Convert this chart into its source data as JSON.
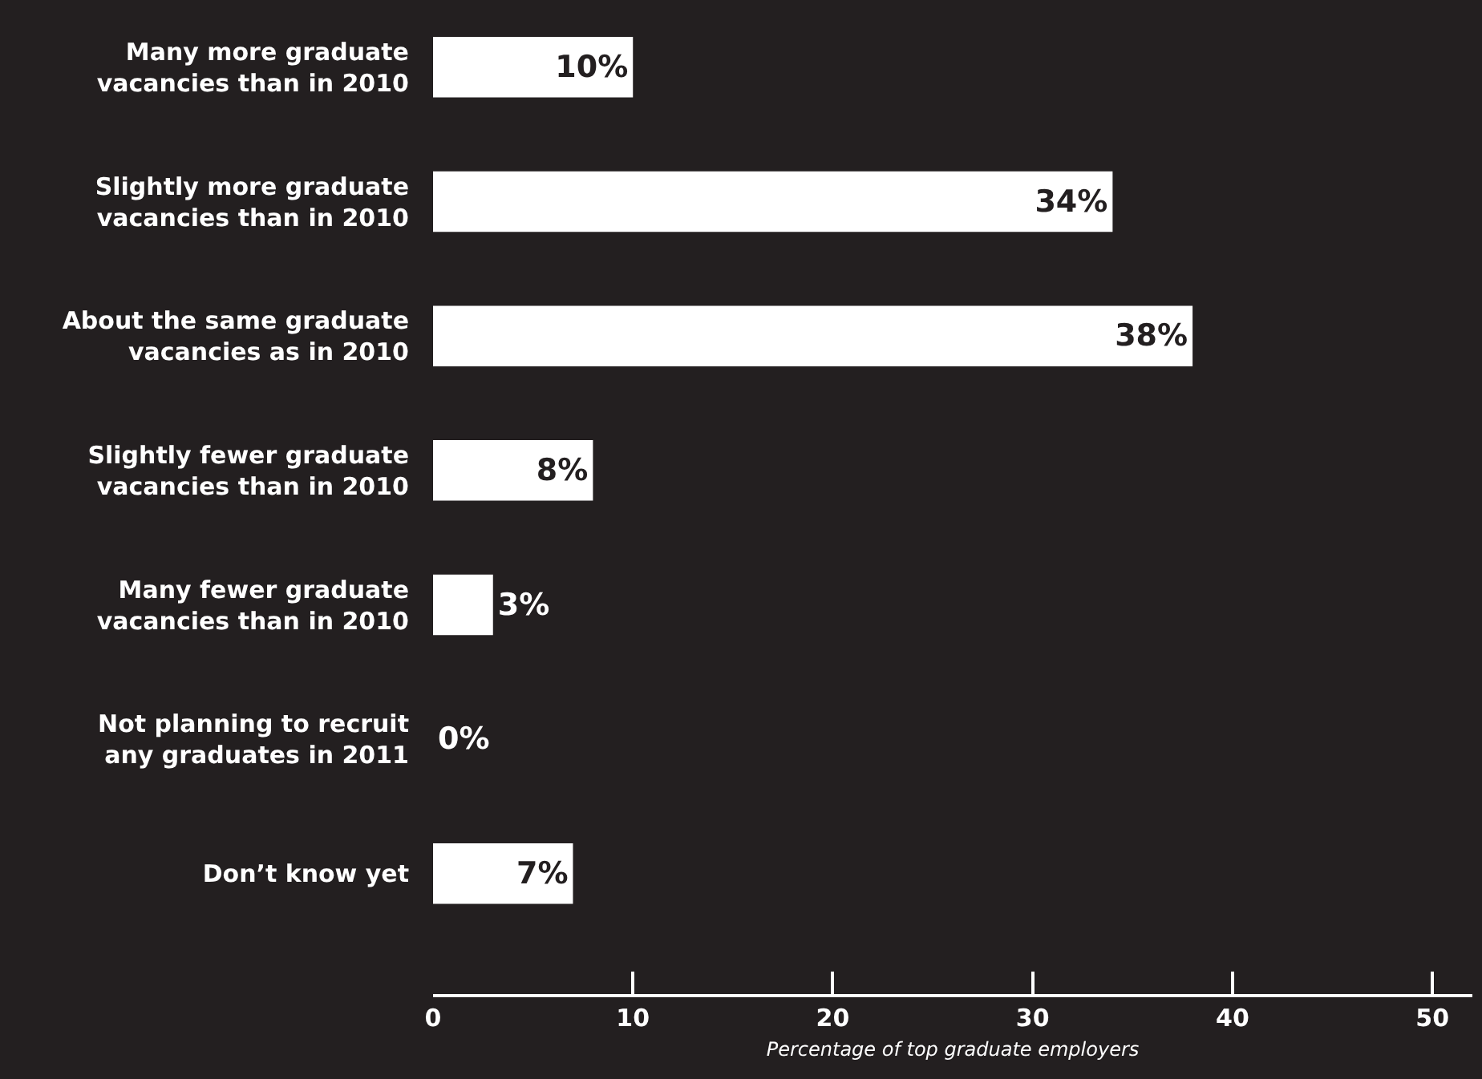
{
  "chart_data": {
    "type": "bar",
    "orientation": "horizontal",
    "categories": [
      "Many more graduate vacancies than in 2010",
      "Slightly more graduate vacancies than in 2010",
      "About the same graduate vacancies as in 2010",
      "Slightly fewer graduate vacancies than in 2010",
      "Many fewer graduate vacancies than in 2010",
      "Not planning to recruit any graduates in 2011",
      "Don’t know yet"
    ],
    "values": [
      10,
      34,
      38,
      8,
      3,
      0,
      7
    ],
    "value_labels": [
      "10%",
      "34%",
      "38%",
      "8%",
      "3%",
      "0%",
      "7%"
    ],
    "color": "#ffffff",
    "xlabel": "Percentage of top graduate employers",
    "xlim": [
      0,
      52
    ],
    "xticks": [
      0,
      10,
      20,
      30,
      40,
      50
    ]
  }
}
